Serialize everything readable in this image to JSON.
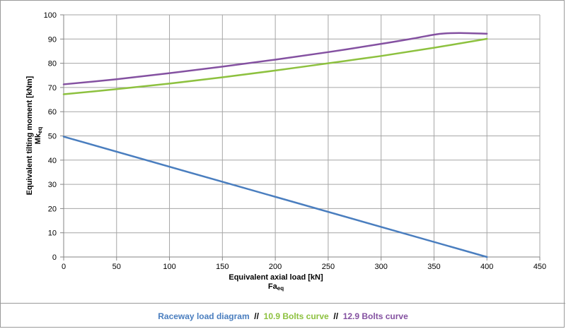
{
  "chart_data": {
    "type": "line",
    "xlabel": "Equivalent axial load [kN]",
    "xlabel_symbol": "Fa",
    "xlabel_subscript": "eq",
    "ylabel": "Equivalent tilting moment [kNm]",
    "ylabel_symbol": "Mk",
    "ylabel_subscript": "eq",
    "xlim": [
      0,
      450
    ],
    "ylim": [
      0,
      100
    ],
    "xticks": [
      "0",
      "50",
      "100",
      "150",
      "200",
      "250",
      "300",
      "350",
      "400",
      "450"
    ],
    "yticks": [
      "0",
      "10",
      "20",
      "30",
      "40",
      "50",
      "60",
      "70",
      "80",
      "90",
      "100"
    ],
    "grid": true,
    "series": [
      {
        "name": "Raceway load diagram",
        "color": "#4a7ebf",
        "x": [
          0,
          400
        ],
        "y": [
          49.7,
          0
        ]
      },
      {
        "name": "10.9 Bolts curve",
        "color": "#8dc13f",
        "x": [
          0,
          50,
          100,
          150,
          200,
          250,
          300,
          350,
          400
        ],
        "y": [
          67.2,
          69.3,
          71.6,
          74.2,
          77,
          80,
          83,
          86.4,
          90.1
        ]
      },
      {
        "name": "12.9 Bolts curve",
        "color": "#8451a1",
        "x": [
          0,
          50,
          100,
          150,
          200,
          250,
          300,
          330,
          350,
          360,
          375,
          400
        ],
        "y": [
          71.3,
          73.4,
          75.9,
          78.6,
          81.5,
          84.6,
          88,
          90.2,
          91.8,
          92.3,
          92.5,
          92.2
        ]
      }
    ]
  },
  "legend": {
    "item1": "Raceway load diagram",
    "sep1": "  //  ",
    "item2": "10.9 Bolts curve",
    "sep2": "  //  ",
    "item3": "12.9 Bolts curve"
  }
}
